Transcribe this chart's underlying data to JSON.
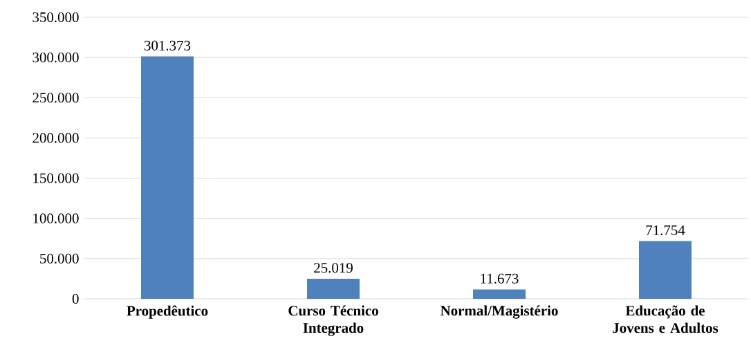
{
  "chart_data": {
    "type": "bar",
    "categories": [
      "Propedêutico",
      "Curso Técnico Integrado",
      "Normal/Magistério",
      "Educação de Jovens e Adultos"
    ],
    "values": [
      301373,
      25019,
      11673,
      71754
    ],
    "color": "#4f81bd",
    "value_labels": [
      "301.373",
      "25.019",
      "11.673",
      "71.754"
    ],
    "ylim": [
      0,
      350000
    ],
    "yticks": [
      0,
      {
        "value": 50000,
        "label": "50.000"
      },
      {
        "value": 100000,
        "label": "100.000"
      },
      {
        "value": 150000,
        "label": "150.000"
      },
      {
        "value": 200000,
        "label": "200.000"
      },
      {
        "value": 250000,
        "label": "250.000"
      },
      {
        "value": 300000,
        "label": "300.000"
      },
      {
        "value": 350000,
        "label": "350.000"
      }
    ],
    "grid": "y"
  }
}
